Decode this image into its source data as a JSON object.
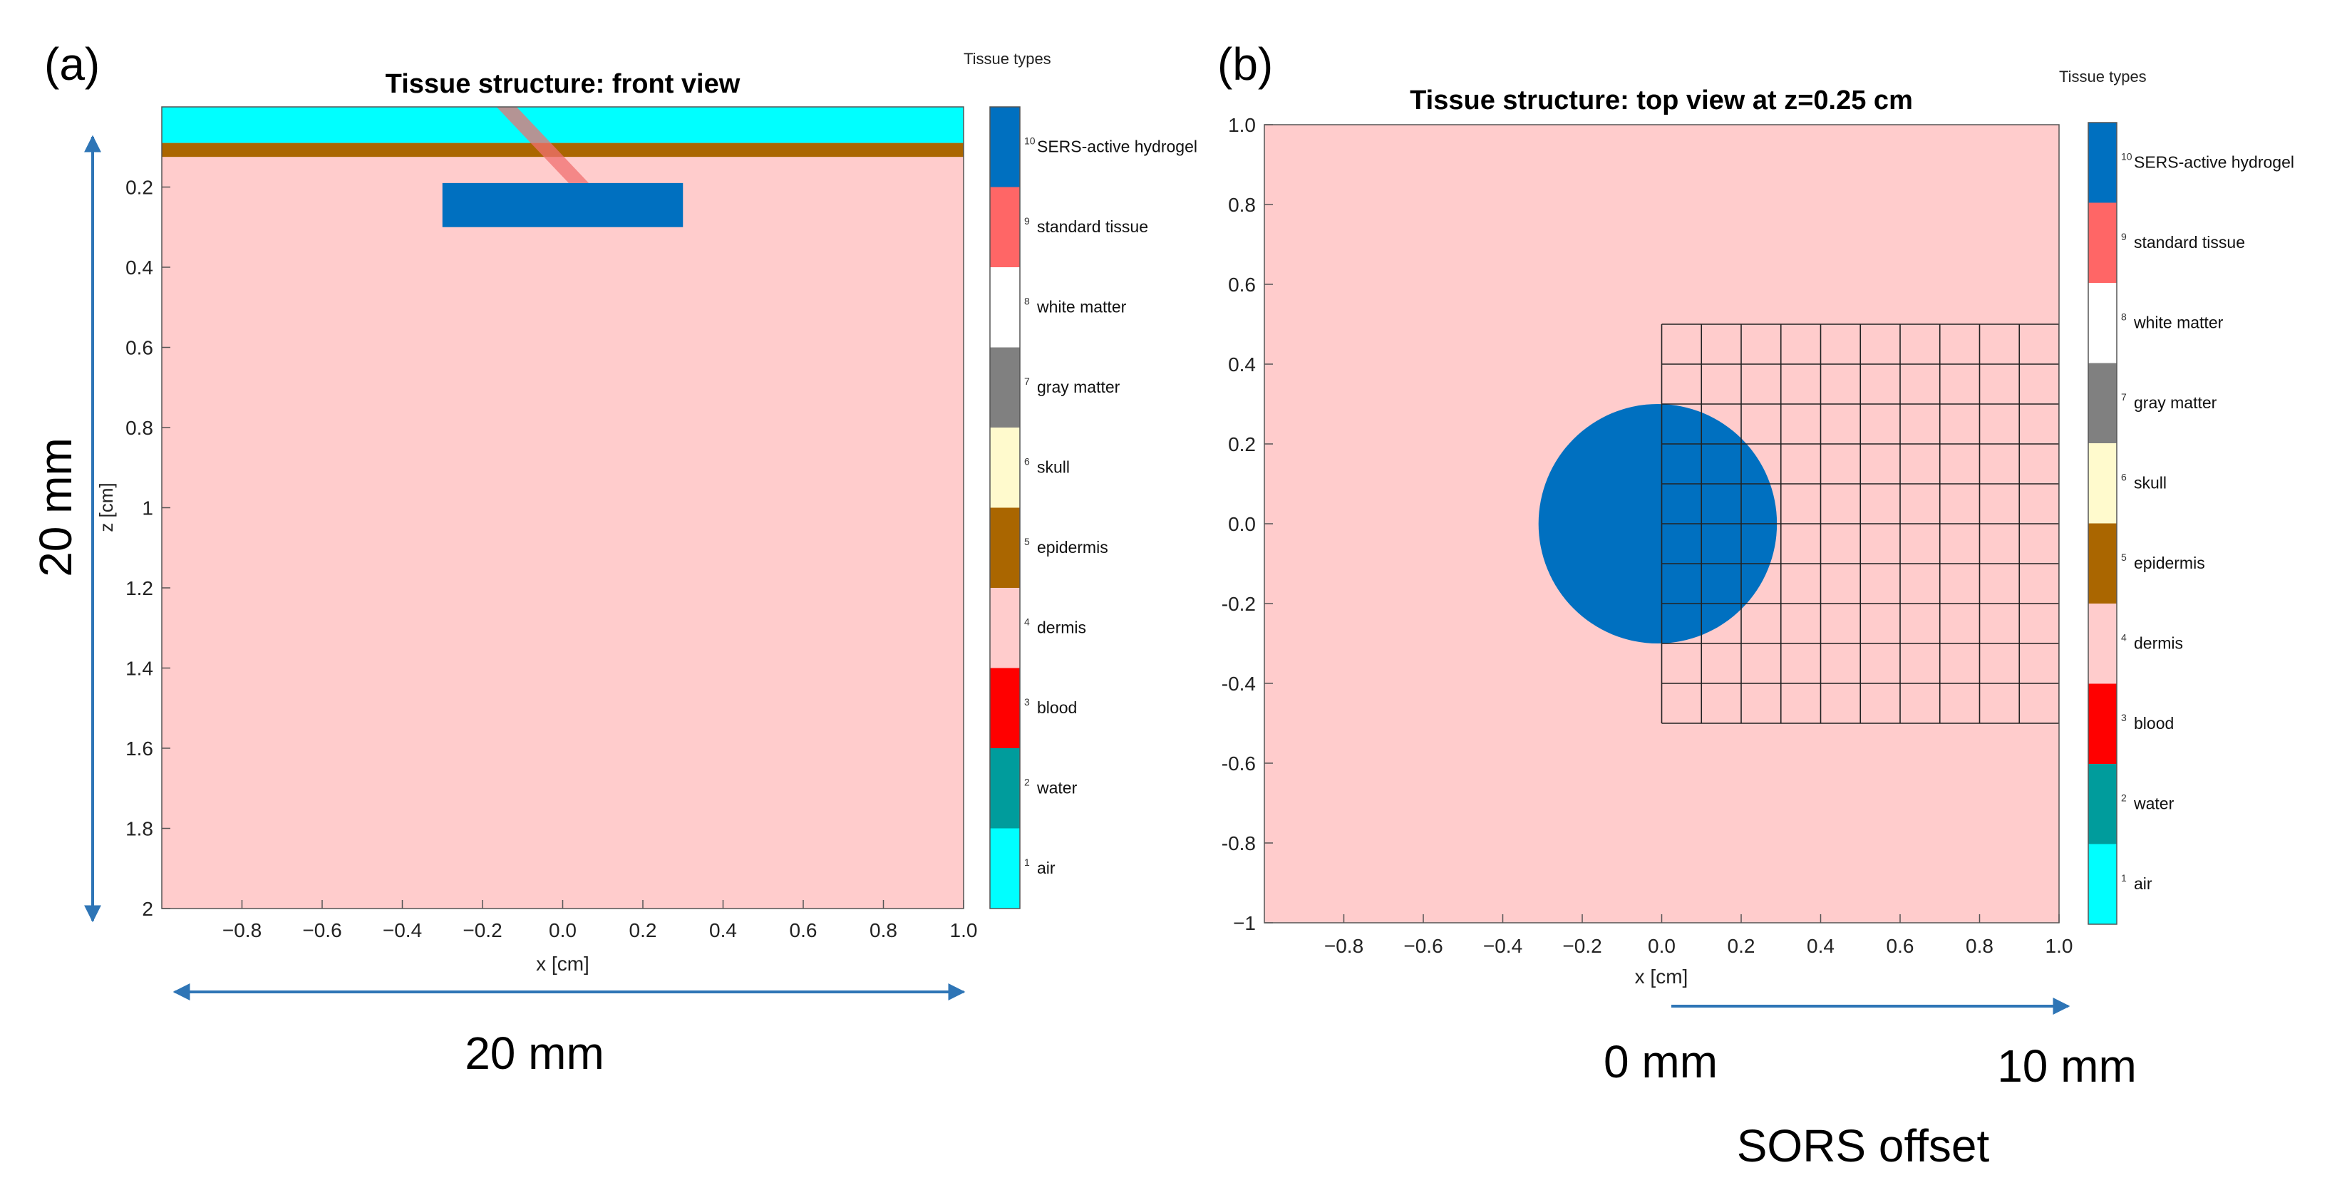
{
  "panels": {
    "a": {
      "letter": "(a)",
      "width_annotation": "20 mm",
      "height_annotation": "20 mm"
    },
    "b": {
      "letter": "(b)",
      "offset_start": "0 mm",
      "offset_end": "10 mm",
      "offset_label": "SORS offset"
    }
  },
  "colors": {
    "air": "#00ffff",
    "water": "#009c9c",
    "blood": "#ff0000",
    "dermis": "#ffcccc",
    "epidermis": "#aa6600",
    "skull": "#fffacd",
    "gray_matter": "#808080",
    "white_matter": "#ffffff",
    "standard_tissue": "#ff6666",
    "hydrogel": "#0070c0",
    "annotation_arrow": "#2e75b6",
    "beam": "#f07070"
  },
  "chart_data": [
    {
      "type": "heatmap",
      "title": "Tissue structure: front view",
      "xlabel": "x [cm]",
      "ylabel": "z [cm]",
      "xlim": [
        -1,
        1
      ],
      "ylim": [
        0,
        2
      ],
      "y_reversed": true,
      "xticks": [
        -0.8,
        -0.6,
        -0.4,
        -0.2,
        0.0,
        0.2,
        0.4,
        0.6,
        0.8,
        1.0
      ],
      "xtick_labels": [
        "−0.8",
        "−0.6",
        "−0.4",
        "−0.2",
        "0.0",
        "0.2",
        "0.4",
        "0.6",
        "0.8",
        "1.0"
      ],
      "yticks": [
        0.2,
        0.4,
        0.6,
        0.8,
        1,
        1.2,
        1.4,
        1.6,
        1.8,
        2
      ],
      "ytick_labels": [
        "0.2",
        "0.4",
        "0.6",
        "0.8",
        "1",
        "1.2",
        "1.4",
        "1.6",
        "1.8",
        "2"
      ],
      "regions": [
        {
          "tissue": "air",
          "x": [
            -1,
            1
          ],
          "z": [
            0,
            0.09
          ]
        },
        {
          "tissue": "epidermis",
          "x": [
            -1,
            1
          ],
          "z": [
            0.09,
            0.125
          ]
        },
        {
          "tissue": "dermis",
          "x": [
            -1,
            1
          ],
          "z": [
            0.125,
            2
          ]
        },
        {
          "tissue": "hydrogel",
          "x": [
            -0.3,
            0.3
          ],
          "z": [
            0.19,
            0.3
          ]
        }
      ],
      "beam": {
        "top": [
          -0.14,
          0.0
        ],
        "bottom": [
          0.04,
          0.19
        ],
        "width": 0.05
      },
      "colorbar": {
        "title": "Tissue types",
        "entries": [
          {
            "index": "10",
            "label": "SERS-active hydrogel",
            "tissue": "hydrogel"
          },
          {
            "index": "9",
            "label": "standard tissue",
            "tissue": "standard_tissue"
          },
          {
            "index": "8",
            "label": "white matter",
            "tissue": "white_matter"
          },
          {
            "index": "7",
            "label": "gray matter",
            "tissue": "gray_matter"
          },
          {
            "index": "6",
            "label": "skull",
            "tissue": "skull"
          },
          {
            "index": "5",
            "label": "epidermis",
            "tissue": "epidermis"
          },
          {
            "index": "4",
            "label": "dermis",
            "tissue": "dermis"
          },
          {
            "index": "3",
            "label": "blood",
            "tissue": "blood"
          },
          {
            "index": "2",
            "label": "water",
            "tissue": "water"
          },
          {
            "index": "1",
            "label": "air",
            "tissue": "air"
          }
        ]
      }
    },
    {
      "type": "heatmap",
      "title": "Tissue structure: top view at z=0.25 cm",
      "xlabel": "x [cm]",
      "ylabel": "",
      "xlim": [
        -1,
        1
      ],
      "ylim": [
        -1,
        1
      ],
      "xticks": [
        -0.8,
        -0.6,
        -0.4,
        -0.2,
        0.0,
        0.2,
        0.4,
        0.6,
        0.8,
        1.0
      ],
      "xtick_labels": [
        "−0.8",
        "−0.6",
        "−0.4",
        "−0.2",
        "0.0",
        "0.2",
        "0.4",
        "0.6",
        "0.8",
        "1.0"
      ],
      "yticks": [
        -1,
        -0.8,
        -0.6,
        -0.4,
        -0.2,
        0.0,
        0.2,
        0.4,
        0.6,
        0.8,
        1.0
      ],
      "ytick_labels": [
        "−1",
        "-0.8",
        "-0.6",
        "-0.4",
        "-0.2",
        "0.0",
        "0.2",
        "0.4",
        "0.6",
        "0.8",
        "1.0"
      ],
      "background_tissue": "dermis",
      "circle": {
        "tissue": "hydrogel",
        "cx": -0.01,
        "cy": 0.0,
        "r": 0.3
      },
      "grid_overlay": {
        "x": [
          0,
          1
        ],
        "y": [
          -0.5,
          0.5
        ],
        "step": 0.1
      },
      "colorbar": {
        "title": "Tissue types",
        "entries": [
          {
            "index": "10",
            "label": "SERS-active hydrogel",
            "tissue": "hydrogel"
          },
          {
            "index": "9",
            "label": "standard tissue",
            "tissue": "standard_tissue"
          },
          {
            "index": "8",
            "label": "white matter",
            "tissue": "white_matter"
          },
          {
            "index": "7",
            "label": "gray matter",
            "tissue": "gray_matter"
          },
          {
            "index": "6",
            "label": "skull",
            "tissue": "skull"
          },
          {
            "index": "5",
            "label": "epidermis",
            "tissue": "epidermis"
          },
          {
            "index": "4",
            "label": "dermis",
            "tissue": "dermis"
          },
          {
            "index": "3",
            "label": "blood",
            "tissue": "blood"
          },
          {
            "index": "2",
            "label": "water",
            "tissue": "water"
          },
          {
            "index": "1",
            "label": "air",
            "tissue": "air"
          }
        ]
      }
    }
  ]
}
